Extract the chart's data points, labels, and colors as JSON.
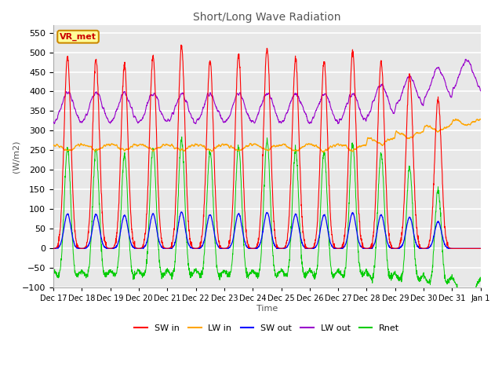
{
  "title": "Short/Long Wave Radiation",
  "xlabel": "Time",
  "ylabel": "(W/m2)",
  "ylim": [
    -100,
    570
  ],
  "yticks": [
    -100,
    -50,
    0,
    50,
    100,
    150,
    200,
    250,
    300,
    350,
    400,
    450,
    500,
    550
  ],
  "x_labels": [
    "Dec 17",
    "Dec 18",
    "Dec 19",
    "Dec 20",
    "Dec 21",
    "Dec 22",
    "Dec 23",
    "Dec 24",
    "Dec 25",
    "Dec 26",
    "Dec 27",
    "Dec 28",
    "Dec 29",
    "Dec 30",
    "Dec 31",
    "Jan 1"
  ],
  "colors": {
    "SW_in": "#ff0000",
    "LW_in": "#ffa500",
    "SW_out": "#0000ff",
    "LW_out": "#9900cc",
    "Rnet": "#00cc00"
  },
  "legend_labels": [
    "SW in",
    "LW in",
    "SW out",
    "LW out",
    "Rnet"
  ],
  "station_label": "VR_met",
  "n_days": 15,
  "pts_per_day": 144,
  "background_color": "#e8e8e8",
  "grid_color": "#ffffff"
}
